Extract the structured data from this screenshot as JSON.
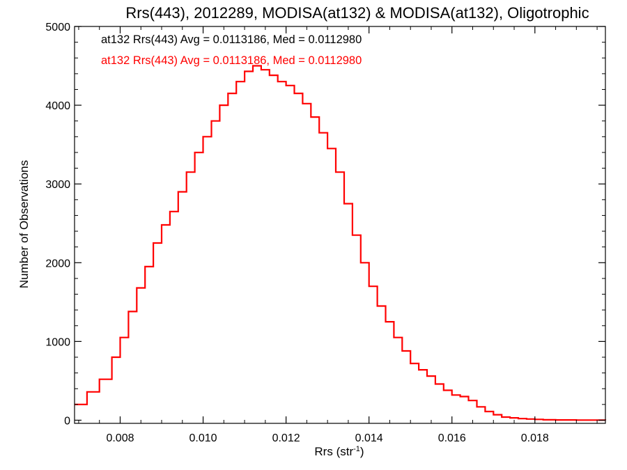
{
  "chart_data": {
    "type": "line",
    "title": "Rrs(443), 2012289, MODISA(at132) & MODISA(at132), Oligotrophic",
    "xlabel": "Rrs (str",
    "xlabel_sup": "-1",
    "xlabel_close": ")",
    "ylabel": "Number of Observations",
    "xlim": [
      0.0069,
      0.0197
    ],
    "ylim": [
      -40,
      5000
    ],
    "xticks": [
      0.008,
      0.01,
      0.012,
      0.014,
      0.016,
      0.018
    ],
    "xtick_labels": [
      "0.008",
      "0.010",
      "0.012",
      "0.014",
      "0.016",
      "0.018"
    ],
    "yticks": [
      0,
      1000,
      2000,
      3000,
      4000,
      5000
    ],
    "ytick_labels": [
      "0",
      "1000",
      "2000",
      "3000",
      "4000",
      "5000"
    ],
    "grid": false,
    "annotations": [
      {
        "text": "at132 Rrs(443) Avg = 0.0113186, Med = 0.0112980",
        "color": "#000000"
      },
      {
        "text": "at132 Rrs(443) Avg = 0.0113186, Med = 0.0112980",
        "color": "#ff0000"
      }
    ],
    "series": [
      {
        "color": "#ff0000",
        "x": [
          0.0069,
          0.0072,
          0.0075,
          0.0078,
          0.008,
          0.0082,
          0.0084,
          0.0086,
          0.0088,
          0.009,
          0.0092,
          0.0094,
          0.0096,
          0.0098,
          0.01,
          0.0102,
          0.0104,
          0.0106,
          0.0108,
          0.011,
          0.0112,
          0.0114,
          0.0116,
          0.0118,
          0.012,
          0.0122,
          0.0124,
          0.0126,
          0.0128,
          0.013,
          0.0132,
          0.0134,
          0.0136,
          0.0138,
          0.014,
          0.0142,
          0.0144,
          0.0146,
          0.0148,
          0.015,
          0.0152,
          0.0154,
          0.0156,
          0.0158,
          0.016,
          0.0162,
          0.0164,
          0.0166,
          0.0168,
          0.017,
          0.0172,
          0.0174,
          0.0176,
          0.0178,
          0.018,
          0.0182,
          0.0185,
          0.019,
          0.0197
        ],
        "y": [
          200,
          360,
          520,
          800,
          1050,
          1380,
          1680,
          1950,
          2250,
          2480,
          2650,
          2900,
          3150,
          3400,
          3600,
          3800,
          4000,
          4150,
          4300,
          4430,
          4500,
          4450,
          4380,
          4300,
          4250,
          4150,
          4020,
          3850,
          3650,
          3450,
          3150,
          2750,
          2350,
          2000,
          1700,
          1450,
          1250,
          1050,
          880,
          720,
          640,
          560,
          460,
          380,
          320,
          300,
          250,
          170,
          110,
          70,
          40,
          30,
          20,
          15,
          10,
          5,
          3,
          2,
          0
        ]
      }
    ]
  }
}
